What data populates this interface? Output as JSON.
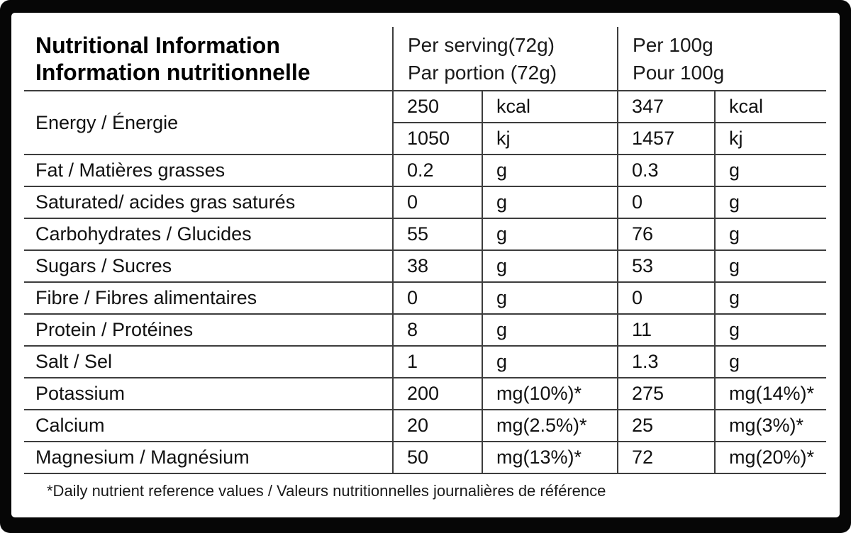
{
  "title": {
    "line1": "Nutritional Information",
    "line2": "Information nutritionnelle"
  },
  "header": {
    "serving_line1": "Per serving(72g)",
    "serving_line2": "Par portion (72g)",
    "per100_line1": "Per 100g",
    "per100_line2": "Pour 100g"
  },
  "rows": [
    {
      "label": "Energy / Énergie",
      "serv_val": "250",
      "serv_unit": "kcal",
      "p100_val": "347",
      "p100_unit": "kcal"
    },
    {
      "serv_val": "1050",
      "serv_unit": "kj",
      "p100_val": "1457",
      "p100_unit": "kj"
    },
    {
      "label": "Fat / Matières grasses",
      "serv_val": "0.2",
      "serv_unit": "g",
      "p100_val": "0.3",
      "p100_unit": "g"
    },
    {
      "label": "Saturated/ acides gras saturés",
      "serv_val": "0",
      "serv_unit": "g",
      "p100_val": "0",
      "p100_unit": "g"
    },
    {
      "label": "Carbohydrates / Glucides",
      "serv_val": "55",
      "serv_unit": "g",
      "p100_val": "76",
      "p100_unit": "g"
    },
    {
      "label": "Sugars / Sucres",
      "serv_val": "38",
      "serv_unit": "g",
      "p100_val": "53",
      "p100_unit": "g"
    },
    {
      "label": "Fibre / Fibres alimentaires",
      "serv_val": "0",
      "serv_unit": "g",
      "p100_val": "0",
      "p100_unit": "g"
    },
    {
      "label": "Protein / Protéines",
      "serv_val": "8",
      "serv_unit": "g",
      "p100_val": "11",
      "p100_unit": "g"
    },
    {
      "label": "Salt / Sel",
      "serv_val": "1",
      "serv_unit": "g",
      "p100_val": "1.3",
      "p100_unit": "g"
    },
    {
      "label": "Potassium",
      "serv_val": "200",
      "serv_unit": "mg(10%)*",
      "p100_val": "275",
      "p100_unit": "mg(14%)*"
    },
    {
      "label": "Calcium",
      "serv_val": "20",
      "serv_unit": "mg(2.5%)*",
      "p100_val": "25",
      "p100_unit": "mg(3%)*"
    },
    {
      "label": "Magnesium / Magnésium",
      "serv_val": "50",
      "serv_unit": "mg(13%)*",
      "p100_val": "72",
      "p100_unit": "mg(20%)*"
    }
  ],
  "footnote": "*Daily nutrient reference values / Valeurs nutritionnelles journalières de référence",
  "colors": {
    "frame": "#060606",
    "card": "#ffffff",
    "line": "#3d3d3d",
    "text": "#111111"
  }
}
